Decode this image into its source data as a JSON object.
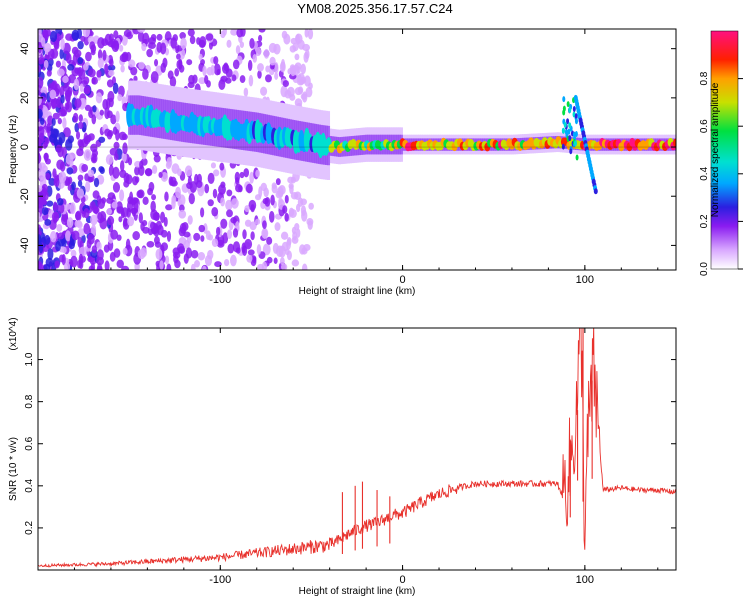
{
  "figure": {
    "title": "YM08.2025.356.17.57.C24"
  },
  "chart_data": [
    {
      "type": "heatmap",
      "name": "spectrogram",
      "title": "YM08.2025.356.17.57.C24",
      "xlabel": "Height of straight line (km)",
      "ylabel": "Frequency (Hz)",
      "xlim": [
        -200,
        150
      ],
      "ylim": [
        -50,
        48
      ],
      "xticks": [
        -100,
        0,
        100
      ],
      "yticks": [
        -40,
        -20,
        0,
        20,
        40
      ],
      "colorbar": {
        "label": "Normalized spectral amplitude",
        "range": [
          0,
          1
        ],
        "ticks": [
          "0.0",
          "0.2",
          "0.4",
          "0.6",
          "0.8"
        ]
      },
      "trace": [
        {
          "x": -145,
          "f": 13
        },
        {
          "x": -120,
          "f": 10
        },
        {
          "x": -100,
          "f": 8
        },
        {
          "x": -80,
          "f": 6
        },
        {
          "x": -60,
          "f": 3
        },
        {
          "x": -45,
          "f": 1
        },
        {
          "x": -35,
          "f": 0
        },
        {
          "x": -20,
          "f": 1
        },
        {
          "x": 0,
          "f": 1
        },
        {
          "x": 20,
          "f": 1
        },
        {
          "x": 60,
          "f": 1
        },
        {
          "x": 85,
          "f": 2
        },
        {
          "x": 100,
          "f": 1
        },
        {
          "x": 150,
          "f": 1
        }
      ],
      "features": [
        {
          "label": "noise-burst",
          "x": 92,
          "f_range": [
            -5,
            20
          ]
        },
        {
          "label": "dispersed-branch",
          "x_range": [
            95,
            106
          ],
          "f_range": [
            -18,
            20
          ]
        }
      ]
    },
    {
      "type": "line",
      "name": "snr",
      "xlabel": "Height of straight line (km)",
      "ylabel": "SNR (10 * v/v)",
      "y_multiplier": "(x10^4)",
      "xlim": [
        -200,
        150
      ],
      "ylim": [
        0,
        1.15
      ],
      "xticks": [
        -100,
        0,
        100
      ],
      "yticks": [
        "0.2",
        "0.4",
        "0.6",
        "0.8",
        "1.0"
      ],
      "color": "#e8312c",
      "series": [
        {
          "name": "SNR",
          "x": [
            -200,
            -180,
            -160,
            -140,
            -120,
            -100,
            -80,
            -60,
            -50,
            -40,
            -35,
            -30,
            -25,
            -20,
            -15,
            -10,
            -5,
            0,
            10,
            20,
            30,
            40,
            50,
            60,
            70,
            80,
            85,
            88,
            92,
            95,
            98,
            100,
            102,
            105,
            108,
            110,
            120,
            130,
            140,
            150
          ],
          "values": [
            0.02,
            0.025,
            0.03,
            0.04,
            0.05,
            0.06,
            0.08,
            0.1,
            0.11,
            0.12,
            0.14,
            0.17,
            0.19,
            0.21,
            0.22,
            0.24,
            0.26,
            0.27,
            0.32,
            0.36,
            0.39,
            0.41,
            0.41,
            0.41,
            0.41,
            0.41,
            0.41,
            0.35,
            0.5,
            0.7,
            1.15,
            0.15,
            0.7,
            0.95,
            0.6,
            0.38,
            0.39,
            0.38,
            0.38,
            0.37
          ]
        }
      ],
      "spikes": [
        {
          "x": -33,
          "value": 0.37
        },
        {
          "x": -26,
          "value": 0.4
        },
        {
          "x": -22,
          "value": 0.42
        },
        {
          "x": -14,
          "value": 0.38
        },
        {
          "x": -7,
          "value": 0.35
        },
        {
          "x": 92,
          "value": 0.62
        },
        {
          "x": 96,
          "value": 0.76
        },
        {
          "x": 99,
          "value": 1.15
        },
        {
          "x": 104,
          "value": 0.9
        }
      ]
    }
  ]
}
